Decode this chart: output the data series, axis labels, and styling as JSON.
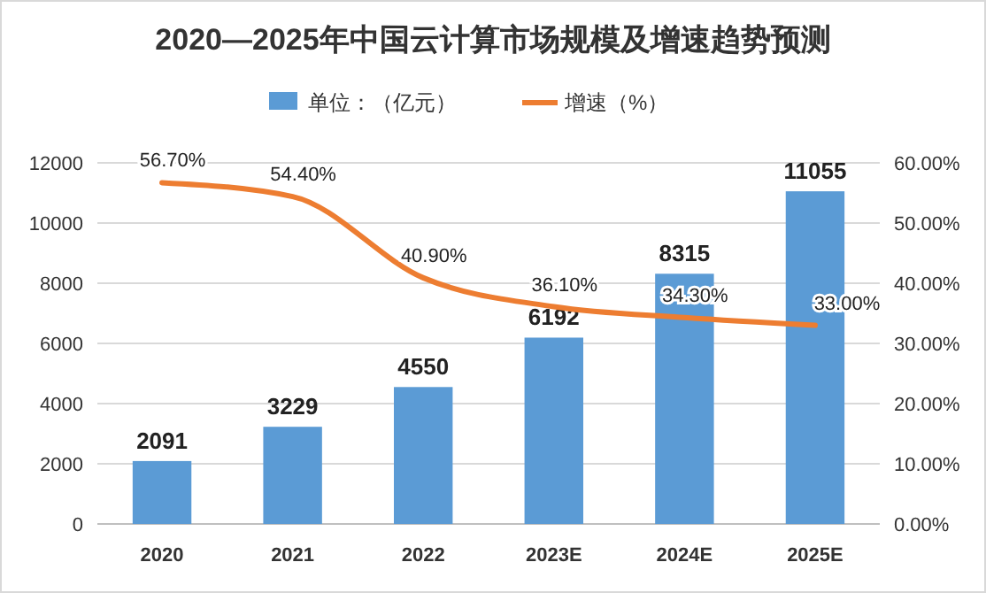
{
  "chart_data": {
    "type": "bar",
    "title": "2020—2025年中国云计算市场规模及增速趋势预测",
    "categories": [
      "2020",
      "2021",
      "2022",
      "2023E",
      "2024E",
      "2025E"
    ],
    "series": [
      {
        "name": "单位：（亿元）",
        "color": "#5b9bd5",
        "values": [
          2091,
          3229,
          4550,
          6192,
          8315,
          11055
        ],
        "value_labels": [
          "2091",
          "3229",
          "4550",
          "6192",
          "8315",
          "11055"
        ]
      },
      {
        "name": "增速（%）",
        "type": "line",
        "axis": "y2",
        "color": "#ed7d31",
        "values": [
          56.7,
          54.4,
          40.9,
          36.1,
          34.3,
          33.0
        ],
        "value_labels": [
          "56.70%",
          "54.40%",
          "40.90%",
          "36.10%",
          "34.30%",
          "33.00%"
        ]
      }
    ],
    "ylim": [
      0,
      12000
    ],
    "yticks": [
      0,
      2000,
      4000,
      6000,
      8000,
      10000,
      12000
    ],
    "y2lim": [
      0,
      60
    ],
    "y2ticks": [
      {
        "value": 0,
        "label": "0.00%"
      },
      {
        "value": 10,
        "label": "10.00%"
      },
      {
        "value": 20,
        "label": "20.00%"
      },
      {
        "value": 30,
        "label": "30.00%"
      },
      {
        "value": 40,
        "label": "40.00%"
      },
      {
        "value": 50,
        "label": "50.00%"
      },
      {
        "value": 60,
        "label": "60.00%"
      }
    ],
    "grid": "y",
    "legend": "top",
    "marker": "none"
  }
}
